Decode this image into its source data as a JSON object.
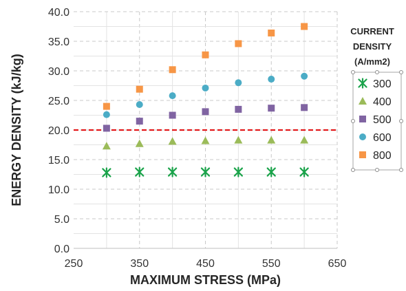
{
  "chart_data": {
    "type": "scatter",
    "xlabel": "MAXIMUM STRESS (MPa)",
    "ylabel": "ENERGY DENSITY (kJ/kg)",
    "xlim": [
      250,
      650
    ],
    "ylim": [
      0,
      40
    ],
    "x_ticks": [
      "250",
      "350",
      "450",
      "550",
      "650"
    ],
    "y_ticks": [
      "0.0",
      "5.0",
      "10.0",
      "15.0",
      "20.0",
      "25.0",
      "30.0",
      "35.0",
      "40.0"
    ],
    "grid": true,
    "legend_title": [
      "CURRENT",
      "DENSITY",
      "(A/mm2)"
    ],
    "legend_position": "right",
    "reference_line": {
      "y": 20,
      "color": "#e31a1c",
      "style": "dashed"
    },
    "x": [
      300,
      350,
      400,
      450,
      500,
      550,
      600
    ],
    "series": [
      {
        "name": "300",
        "marker": "asterisk",
        "color": "#1aa34a",
        "values": [
          12.8,
          12.9,
          12.9,
          12.9,
          12.9,
          12.9,
          12.9
        ]
      },
      {
        "name": "400",
        "marker": "triangle",
        "color": "#9bbb59",
        "values": [
          17.3,
          17.7,
          18.1,
          18.2,
          18.3,
          18.3,
          18.3
        ]
      },
      {
        "name": "500",
        "marker": "square",
        "color": "#8064a2",
        "values": [
          20.3,
          21.5,
          22.5,
          23.1,
          23.5,
          23.7,
          23.8
        ]
      },
      {
        "name": "600",
        "marker": "circle",
        "color": "#4bacc6",
        "values": [
          22.6,
          24.3,
          25.8,
          27.1,
          28.0,
          28.6,
          29.1
        ]
      },
      {
        "name": "800",
        "marker": "square",
        "color": "#f79646",
        "values": [
          24.0,
          26.9,
          30.2,
          32.7,
          34.6,
          36.4,
          37.5
        ]
      }
    ]
  }
}
